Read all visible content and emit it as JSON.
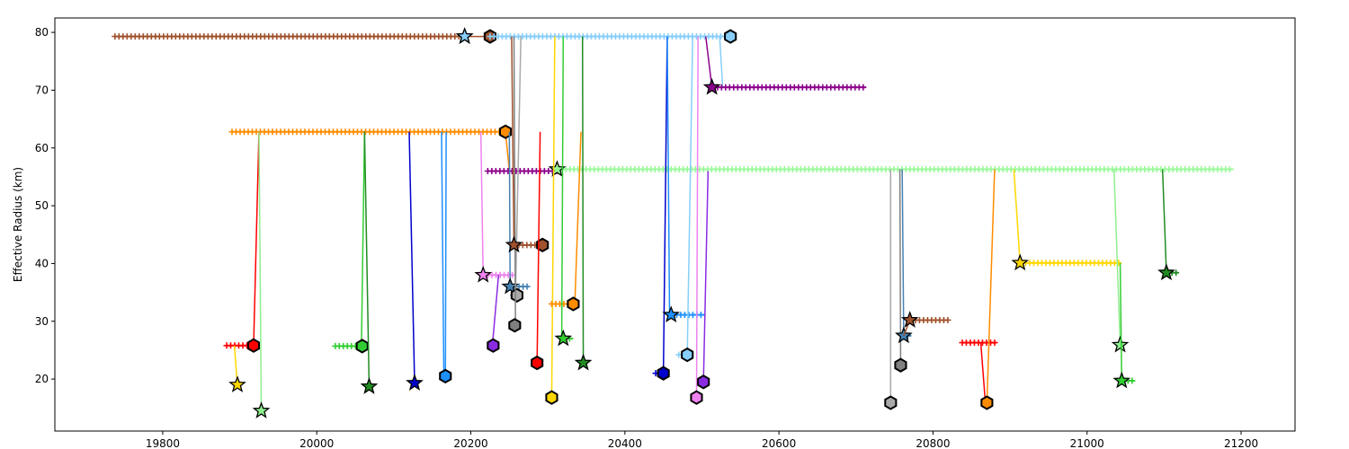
{
  "chart_data": {
    "type": "scatter",
    "title": "",
    "xlabel": "",
    "ylabel": "Effective Radius (km)",
    "xlim": [
      19660,
      21270
    ],
    "ylim": [
      11,
      82.5
    ],
    "grid": false,
    "legend": "none",
    "x_ticks": [
      {
        "value": 19800,
        "label": "19800"
      },
      {
        "value": 20000,
        "label": "20000"
      },
      {
        "value": 20200,
        "label": "20200"
      },
      {
        "value": 20400,
        "label": "20400"
      },
      {
        "value": 20600,
        "label": "20600"
      },
      {
        "value": 20800,
        "label": "20800"
      },
      {
        "value": 21000,
        "label": "21000"
      },
      {
        "value": 21200,
        "label": "21200"
      }
    ],
    "y_ticks": [
      {
        "value": 20,
        "label": "20"
      },
      {
        "value": 30,
        "label": "30"
      },
      {
        "value": 40,
        "label": "40"
      },
      {
        "value": 50,
        "label": "50"
      },
      {
        "value": 60,
        "label": "60"
      },
      {
        "value": 70,
        "label": "70"
      },
      {
        "value": 80,
        "label": "80"
      }
    ],
    "series": [
      {
        "color": "#a0522d",
        "track": [
          [
            19738,
            79.3
          ],
          [
            20192,
            79.3
          ]
        ],
        "links": [
          [
            20192,
            79.3,
            20218,
            79.3
          ]
        ],
        "start": [
          20192,
          79.3
        ],
        "end": [
          20225,
          79.3
        ]
      },
      {
        "color": "#87cefa",
        "track": [
          [
            20225,
            79.3
          ],
          [
            20535,
            79.3
          ]
        ],
        "links": [
          [
            20523,
            79.3,
            20527,
            70.5
          ]
        ],
        "start": [
          20192,
          79.3
        ],
        "end": [
          20537,
          79.3
        ]
      },
      {
        "color": "#8b008b",
        "track": [
          [
            20515,
            70.5
          ],
          [
            20713,
            70.5
          ]
        ],
        "links": [
          [
            20505,
            79.3,
            20513,
            70.5
          ]
        ],
        "start": [
          20513,
          70.5
        ],
        "end": null
      },
      {
        "color": "#ff8c00",
        "track": [
          [
            19890,
            62.8
          ],
          [
            20245,
            62.8
          ]
        ],
        "links": [
          [
            20245,
            62.8,
            20250,
            56
          ]
        ],
        "start": null,
        "end": [
          20245,
          62.8
        ]
      },
      {
        "color": "#8b008b",
        "track": [
          [
            20222,
            56
          ],
          [
            20313,
            56
          ]
        ],
        "links": [],
        "start": null,
        "end": null
      },
      {
        "color": "#98fb98",
        "track": [
          [
            20313,
            56.3
          ],
          [
            21190,
            56.3
          ]
        ],
        "links": [
          [
            20313,
            56.3,
            20311,
            56.3
          ]
        ],
        "start": [
          20312,
          56.3
        ],
        "end": null
      },
      {
        "color": "#ff0000",
        "track": [
          [
            19883,
            25.8
          ],
          [
            19918,
            25.8
          ]
        ],
        "links": [
          [
            19918,
            25.8,
            19925,
            62.8
          ]
        ],
        "start": null,
        "end": [
          19918,
          25.8
        ]
      },
      {
        "color": "#ffd700",
        "track": [],
        "links": [
          [
            19893,
            25.8,
            19897,
            19
          ]
        ],
        "start": [
          19897,
          19
        ],
        "end": null
      },
      {
        "color": "#90ee90",
        "track": [],
        "links": [
          [
            19925,
            62.8,
            19928,
            14.5
          ]
        ],
        "start": [
          19928,
          14.5
        ],
        "end": null
      },
      {
        "color": "#32cd32",
        "track": [
          [
            20024,
            25.7
          ],
          [
            20058,
            25.7
          ]
        ],
        "links": [
          [
            20058,
            25.7,
            20062,
            62.8
          ]
        ],
        "start": null,
        "end": [
          20059,
          25.7
        ]
      },
      {
        "color": "#228b22",
        "track": [],
        "links": [
          [
            20062,
            62.8,
            20068,
            18.7
          ]
        ],
        "start": [
          20068,
          18.7
        ],
        "end": null
      },
      {
        "color": "#0000cd",
        "track": [],
        "links": [
          [
            20120,
            62.8,
            20127,
            19.3
          ]
        ],
        "start": [
          20127,
          19.3
        ],
        "end": null
      },
      {
        "color": "#1e90ff",
        "track": [],
        "links": [
          [
            20162,
            62.8,
            20165,
            20.5
          ],
          [
            20168,
            62.8,
            20167,
            20.5
          ]
        ],
        "start": null,
        "end": [
          20167,
          20.5
        ]
      },
      {
        "color": "#ee82ee",
        "track": [
          [
            20217,
            38
          ],
          [
            20256,
            38
          ]
        ],
        "links": [
          [
            20213,
            62.8,
            20216,
            38
          ]
        ],
        "start": [
          20216,
          38
        ],
        "end": null
      },
      {
        "color": "#8a2be2",
        "track": [],
        "links": [
          [
            20228,
            25.8,
            20236,
            38
          ]
        ],
        "start": null,
        "end": [
          20229,
          25.8
        ]
      },
      {
        "color": "#4682b4",
        "track": [
          [
            20252,
            36
          ],
          [
            20275,
            36
          ]
        ],
        "links": [
          [
            20250,
            62.8,
            20251,
            36
          ]
        ],
        "start": [
          20251,
          36
        ],
        "end": null
      },
      {
        "color": "#a9a9a9",
        "track": [
          [
            20255,
            34.5
          ],
          [
            20262,
            34.5
          ]
        ],
        "links": [
          [
            20265,
            79.3,
            20258,
            34.5
          ]
        ],
        "start": null,
        "end": [
          20260,
          34.5
        ]
      },
      {
        "color": "#808080",
        "track": [],
        "links": [
          [
            20256,
            79.3,
            20258,
            29.3
          ]
        ],
        "start": null,
        "end": [
          20257,
          29.3
        ]
      },
      {
        "color": "#a0522d",
        "track": [
          [
            20257,
            43.2
          ],
          [
            20295,
            43.2
          ]
        ],
        "links": [
          [
            20253,
            79.3,
            20256,
            43.2
          ]
        ],
        "start": [
          20256,
          43.2
        ],
        "end": [
          20293,
          43.2
        ]
      },
      {
        "color": "#ff0000",
        "track": [],
        "links": [
          [
            20290,
            62.8,
            20286,
            22.8
          ]
        ],
        "start": null,
        "end": [
          20286,
          22.8
        ]
      },
      {
        "color": "#ffd700",
        "track": [],
        "links": [
          [
            20309,
            79.3,
            20305,
            16.8
          ]
        ],
        "start": null,
        "end": [
          20305,
          16.8
        ]
      },
      {
        "color": "#ff8c00",
        "track": [
          [
            20305,
            33
          ],
          [
            20333,
            33
          ]
        ],
        "links": [
          [
            20343,
            62.8,
            20335,
            33
          ]
        ],
        "start": null,
        "end": [
          20333,
          33
        ]
      },
      {
        "color": "#32cd32",
        "track": [
          [
            20323,
            27
          ],
          [
            20333,
            27
          ]
        ],
        "links": [
          [
            20320,
            79.3,
            20318,
            27
          ]
        ],
        "start": [
          20320,
          27
        ],
        "end": null
      },
      {
        "color": "#228b22",
        "track": [],
        "links": [
          [
            20345,
            79.3,
            20346,
            22.8
          ]
        ],
        "start": [
          20346,
          22.8
        ],
        "end": null
      },
      {
        "color": "#0000cd",
        "track": [
          [
            20440,
            21
          ],
          [
            20448,
            21
          ]
        ],
        "links": [
          [
            20455,
            79.3,
            20450,
            21
          ]
        ],
        "start": null,
        "end": [
          20450,
          21
        ]
      },
      {
        "color": "#1e90ff",
        "track": [
          [
            20462,
            31.1
          ],
          [
            20503,
            31.1
          ]
        ],
        "links": [
          [
            20455,
            79.3,
            20458,
            31.1
          ]
        ],
        "start": [
          20460,
          31.1
        ],
        "end": null
      },
      {
        "color": "#87cefa",
        "track": [
          [
            20470,
            24.2
          ],
          [
            20478,
            24.2
          ]
        ],
        "links": [
          [
            20488,
            79.3,
            20481,
            24.2
          ]
        ],
        "start": null,
        "end": [
          20481,
          24.2
        ]
      },
      {
        "color": "#ee82ee",
        "track": [],
        "links": [
          [
            20495,
            79.3,
            20493,
            16.8
          ]
        ],
        "start": null,
        "end": [
          20493,
          16.8
        ]
      },
      {
        "color": "#8a2be2",
        "track": [],
        "links": [
          [
            20508,
            56,
            20502,
            19.5
          ]
        ],
        "start": null,
        "end": [
          20502,
          19.5
        ]
      },
      {
        "color": "#a9a9a9",
        "track": [],
        "links": [
          [
            20745,
            56.3,
            20745,
            15.9
          ]
        ],
        "start": null,
        "end": [
          20745,
          15.9
        ]
      },
      {
        "color": "#808080",
        "track": [],
        "links": [
          [
            20757,
            56.3,
            20758,
            22.4
          ]
        ],
        "start": null,
        "end": [
          20758,
          22.4
        ]
      },
      {
        "color": "#4682b4",
        "track": [
          [
            20762,
            27.5
          ],
          [
            20772,
            27.5
          ]
        ],
        "links": [
          [
            20760,
            56.3,
            20762,
            27.5
          ]
        ],
        "start": [
          20762,
          27.5
        ],
        "end": null
      },
      {
        "color": "#a0522d",
        "track": [
          [
            20772,
            30.2
          ],
          [
            20820,
            30.2
          ]
        ],
        "links": [
          [
            20762,
            27.5,
            20770,
            30.2
          ]
        ],
        "start": [
          20770,
          30.2
        ],
        "end": null
      },
      {
        "color": "#ff0000",
        "track": [
          [
            20838,
            26.3
          ],
          [
            20882,
            26.3
          ]
        ],
        "links": [
          [
            20862,
            26.3,
            20868,
            15.9
          ]
        ],
        "start": null,
        "end": null
      },
      {
        "color": "#ff8c00",
        "track": [],
        "links": [
          [
            20880,
            56.3,
            20870,
            15.9
          ]
        ],
        "start": null,
        "end": [
          20870,
          15.9
        ]
      },
      {
        "color": "#ffd700",
        "track": [
          [
            20915,
            40.1
          ],
          [
            21042,
            40.1
          ]
        ],
        "links": [
          [
            20905,
            56.3,
            20913,
            40.1
          ]
        ],
        "start": [
          20913,
          40.1
        ],
        "end": null
      },
      {
        "color": "#90ee90",
        "track": [],
        "links": [
          [
            21035,
            56.3,
            21043,
            25.9
          ]
        ],
        "start": [
          21043,
          25.9
        ],
        "end": null
      },
      {
        "color": "#32cd32",
        "track": [
          [
            21048,
            19.7
          ],
          [
            21062,
            19.7
          ]
        ],
        "links": [
          [
            21043,
            40.1,
            21045,
            19.7
          ]
        ],
        "start": [
          21045,
          19.7
        ],
        "end": null
      },
      {
        "color": "#228b22",
        "track": [
          [
            21105,
            38.4
          ],
          [
            21118,
            38.4
          ]
        ],
        "links": [
          [
            21098,
            56.3,
            21103,
            38.4
          ]
        ],
        "start": [
          21103,
          38.4
        ],
        "end": null
      }
    ]
  }
}
